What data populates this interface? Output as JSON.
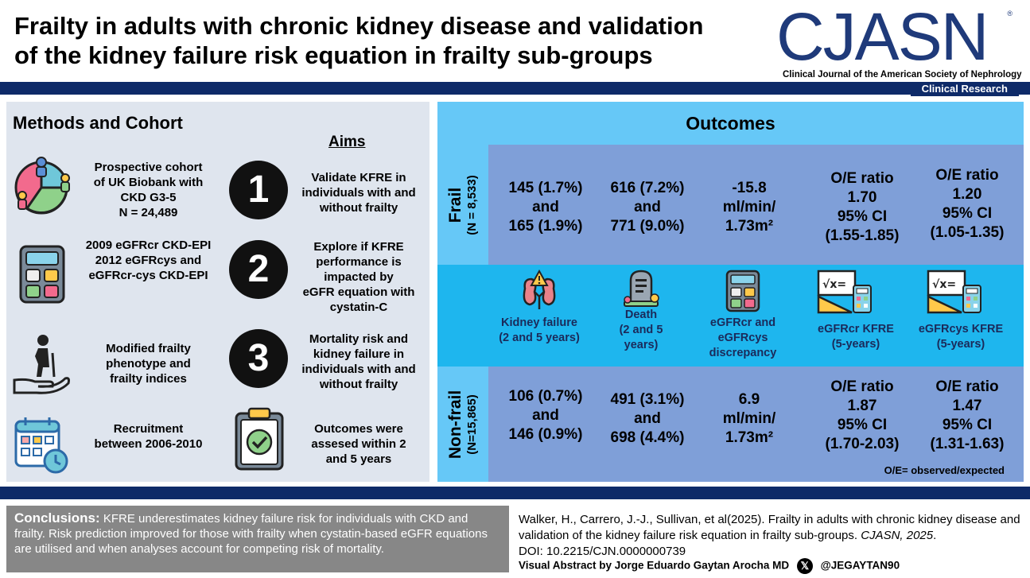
{
  "header": {
    "title_line1": "Frailty in adults with chronic kidney disease and validation",
    "title_line2": "of the kidney failure risk equation in frailty sub-groups",
    "logo_text": "CJASN",
    "logo_reg": "®",
    "logo_subtitle": "Clinical Journal of the American Society of Nephrology",
    "tag": "Clinical Research"
  },
  "methods": {
    "title": "Methods and Cohort",
    "items": [
      {
        "text": "Prospective cohort\nof UK Biobank with\nCKD G3-5\nN = 24,489",
        "icon": "pie-people-icon"
      },
      {
        "text": "2009 eGFRcr CKD-EPI\n2012 eGFRcys and\neGFRcr-cys CKD-EPI",
        "icon": "calculator-icon"
      },
      {
        "text": "Modified frailty\nphenotype and\nfrailty indices",
        "icon": "elderly-hand-icon"
      },
      {
        "text": "Recruitment\nbetween 2006-2010",
        "icon": "calendar-clock-icon"
      }
    ]
  },
  "aims": {
    "title": "Aims",
    "items": [
      {
        "num": "1",
        "text": "Validate KFRE in\nindividuals with and\nwithout frailty"
      },
      {
        "num": "2",
        "text": "Explore if KFRE\nperformance is\nimpacted by\neGFR equation with\ncystatin-C"
      },
      {
        "num": "3",
        "text": "Mortality risk and\nkidney failure in\nindividuals with and\nwithout frailty"
      },
      {
        "num": "",
        "text": "Outcomes were\nassesed within 2\nand 5 years",
        "icon": "clipboard-check-icon"
      }
    ]
  },
  "outcomes": {
    "title": "Outcomes",
    "frail": {
      "label": "Frail",
      "n": "(N = 8,533)",
      "values": [
        "145 (1.7%)\nand\n165 (1.9%)",
        "616 (7.2%)\nand\n771 (9.0%)",
        "-15.8\nml/min/\n1.73m²",
        "O/E ratio\n1.70\n95% CI\n(1.55-1.85)",
        "O/E ratio\n1.20\n95% CI\n(1.05-1.35)"
      ]
    },
    "categories": [
      {
        "label": "Kidney failure\n(2 and 5 years)",
        "icon": "kidney-warning-icon"
      },
      {
        "label": "Death\n(2 and 5\nyears)",
        "icon": "gravestone-icon"
      },
      {
        "label": "eGFRcr and\neGFRcys\ndiscrepancy",
        "icon": "calculator-icon"
      },
      {
        "label": "eGFRcr KFRE\n(5-years)",
        "icon": "formula-ruler-icon"
      },
      {
        "label": "eGFRcys KFRE\n(5-years)",
        "icon": "formula-ruler-icon"
      }
    ],
    "nonfrail": {
      "label": "Non-frail",
      "n": "(N=15,865)",
      "values": [
        "106 (0.7%)\nand\n146 (0.9%)",
        "491 (3.1%)\nand\n698 (4.4%)",
        "6.9\nml/min/\n1.73m²",
        "O/E ratio\n1.87\n95% CI\n(1.70-2.03)",
        "O/E ratio\n1.47\n95% CI\n(1.31-1.63)"
      ]
    },
    "note": "O/E= observed/expected"
  },
  "footer": {
    "conclusions_label": "Conclusions:",
    "conclusions_text": " KFRE underestimates kidney failure risk for individuals with CKD and frailty. Risk prediction improved for those with frailty when cystatin-based eGFR equations are utilised and when analyses account for competing risk of mortality.",
    "citation_text": "Walker, H., Carrero, J.-J., Sullivan, et al(2025). Frailty in adults with chronic kidney disease and validation of the kidney failure risk equation in frailty sub-groups. ",
    "citation_journal": "CJASN, 2025",
    "citation_end": ".",
    "doi": "DOI: 10.2215/CJN.0000000739",
    "credit": "Visual Abstract by Jorge Eduardo Gaytan Arocha MD",
    "x_glyph": "𝕏",
    "handle": "@JEGAYTAN90"
  }
}
